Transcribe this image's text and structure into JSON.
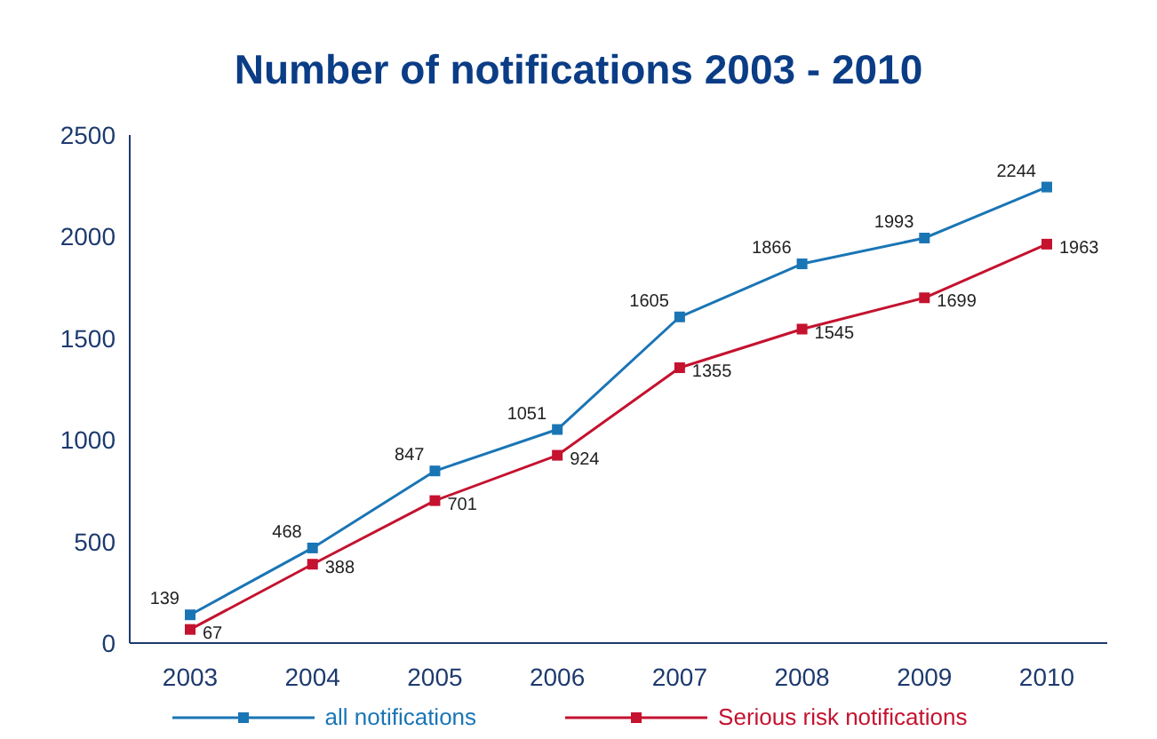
{
  "chart_data": {
    "type": "line",
    "title": "Number of notifications 2003 - 2010",
    "categories": [
      "2003",
      "2004",
      "2005",
      "2006",
      "2007",
      "2008",
      "2009",
      "2010"
    ],
    "series": [
      {
        "name": "all notifications",
        "color": "#1a75b5",
        "values": [
          139,
          468,
          847,
          1051,
          1605,
          1866,
          1993,
          2244
        ]
      },
      {
        "name": "Serious risk notifications",
        "color": "#c4122f",
        "values": [
          67,
          388,
          701,
          924,
          1355,
          1545,
          1699,
          1963
        ]
      }
    ],
    "ylim": [
      0,
      2500
    ],
    "yticks": [
      0,
      500,
      1000,
      1500,
      2000,
      2500
    ],
    "grid": false,
    "legend": "bottom",
    "marker": "square",
    "data_labels": true
  }
}
